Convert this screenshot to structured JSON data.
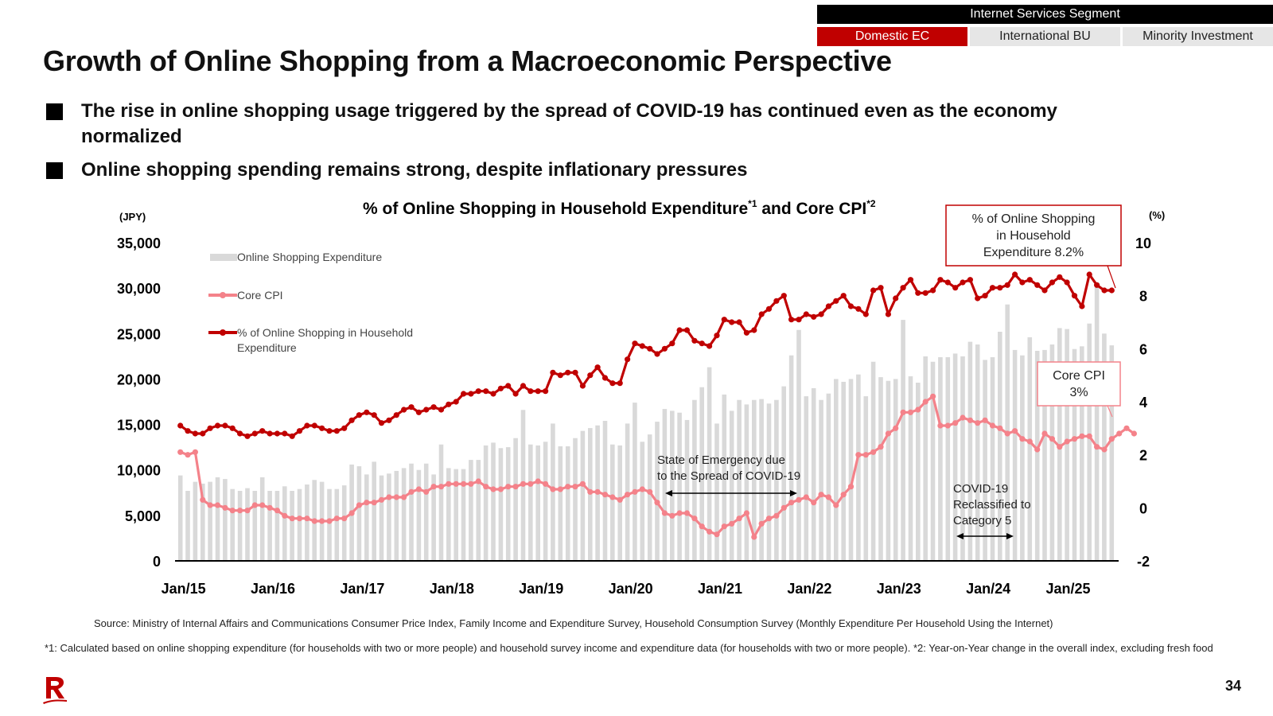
{
  "segment": {
    "header": "Internet Services Segment",
    "tabs": [
      {
        "label": "Domestic EC",
        "active": true
      },
      {
        "label": "International BU",
        "active": false
      },
      {
        "label": "Minority Investment",
        "active": false
      }
    ]
  },
  "title": "Growth of Online Shopping from a Macroeconomic Perspective",
  "bullets": [
    "The rise in online shopping usage triggered by the spread of COVID-19 has continued even as the economy normalized",
    "Online shopping spending remains strong, despite inflationary pressures"
  ],
  "chart_data": {
    "type": "bar+line",
    "title": "% of Online Shopping in Household Expenditure",
    "title_sup1": "*1",
    "title_mid": " and Core CPI",
    "title_sup2": "*2",
    "left_axis": {
      "unit": "(JPY)",
      "ticks": [
        0,
        5000,
        10000,
        15000,
        20000,
        25000,
        30000,
        35000
      ],
      "tick_labels": [
        "0",
        "5,000",
        "10,000",
        "15,000",
        "20,000",
        "25,000",
        "30,000",
        "35,000"
      ],
      "range": [
        0,
        35000
      ]
    },
    "right_axis": {
      "unit": "(%)",
      "ticks": [
        -2,
        0,
        2,
        4,
        6,
        8,
        10
      ],
      "range": [
        -2,
        10
      ]
    },
    "x_labels": [
      "Jan/15",
      "Jan/16",
      "Jan/17",
      "Jan/18",
      "Jan/19",
      "Jan/20",
      "Jan/21",
      "Jan/22",
      "Jan/23",
      "Jan/24",
      "Jan/25"
    ],
    "legend": {
      "placement": "top-left",
      "items": [
        {
          "name": "Online Shopping Expenditure",
          "kind": "bar",
          "color": "#d9d9d9"
        },
        {
          "name": "Core CPI",
          "kind": "line",
          "color": "#f4828a"
        },
        {
          "name": "% of Online Shopping in Household Expenditure",
          "kind": "line",
          "color": "#c00000"
        }
      ]
    },
    "series": [
      {
        "name": "Online Shopping Expenditure",
        "axis": "left",
        "values": [
          9400,
          7700,
          8700,
          8500,
          8700,
          9200,
          9000,
          7900,
          7700,
          8000,
          7700,
          9200,
          7700,
          7700,
          8200,
          7700,
          7900,
          8400,
          8900,
          8700,
          7900,
          7900,
          8300,
          10600,
          10400,
          9500,
          10900,
          9400,
          9600,
          9900,
          10200,
          10700,
          10000,
          10700,
          9500,
          12800,
          10200,
          10100,
          10100,
          11100,
          11100,
          12700,
          13000,
          12400,
          12500,
          13500,
          16600,
          12800,
          12700,
          13100,
          15100,
          12600,
          12600,
          13500,
          14300,
          14600,
          14900,
          15400,
          12800,
          12700,
          15100,
          17400,
          13100,
          13900,
          15300,
          16700,
          16500,
          16300,
          15500,
          17700,
          19100,
          21300,
          15100,
          18300,
          16500,
          17700,
          17200,
          17700,
          17800,
          17300,
          17700,
          19200,
          22600,
          25400,
          18100,
          19000,
          17700,
          18400,
          20000,
          19700,
          20000,
          20500,
          18100,
          21900,
          20200,
          19800,
          20000,
          26500,
          20300,
          19600,
          22500,
          21900,
          22400,
          22400,
          22800,
          22500,
          24100,
          23800,
          22100,
          22400,
          25200,
          28200,
          23200,
          22600,
          24600,
          23100,
          23200,
          23800,
          25600,
          25500,
          23300,
          23600,
          26100,
          30300,
          25000,
          23700
        ]
      },
      {
        "name": "Core CPI",
        "axis": "right",
        "values": [
          2.1,
          2.0,
          2.1,
          0.3,
          0.1,
          0.1,
          0.0,
          -0.1,
          -0.1,
          -0.1,
          0.1,
          0.1,
          0.0,
          -0.1,
          -0.3,
          -0.4,
          -0.4,
          -0.4,
          -0.5,
          -0.5,
          -0.5,
          -0.4,
          -0.4,
          -0.2,
          0.1,
          0.2,
          0.2,
          0.3,
          0.4,
          0.4,
          0.4,
          0.6,
          0.7,
          0.6,
          0.8,
          0.8,
          0.9,
          0.9,
          0.9,
          0.9,
          1.0,
          0.8,
          0.7,
          0.7,
          0.8,
          0.8,
          0.9,
          0.9,
          1.0,
          0.9,
          0.7,
          0.7,
          0.8,
          0.8,
          0.9,
          0.6,
          0.6,
          0.5,
          0.4,
          0.3,
          0.5,
          0.6,
          0.7,
          0.6,
          0.2,
          -0.2,
          -0.3,
          -0.2,
          -0.2,
          -0.4,
          -0.7,
          -0.9,
          -1.0,
          -0.7,
          -0.6,
          -0.4,
          -0.2,
          -1.1,
          -0.6,
          -0.4,
          -0.3,
          0.0,
          0.2,
          0.3,
          0.4,
          0.2,
          0.5,
          0.4,
          0.1,
          0.5,
          0.8,
          2.0,
          2.0,
          2.1,
          2.3,
          2.8,
          3.0,
          3.6,
          3.6,
          3.7,
          4.0,
          4.2,
          3.1,
          3.1,
          3.2,
          3.4,
          3.3,
          3.2,
          3.3,
          3.1,
          3.0,
          2.8,
          2.9,
          2.6,
          2.5,
          2.2,
          2.8,
          2.6,
          2.3,
          2.5,
          2.6,
          2.7,
          2.7,
          2.3,
          2.2,
          2.6,
          2.8,
          3.0,
          2.8
        ]
      },
      {
        "name": "% of Online Shopping in Household Expenditure",
        "axis": "right",
        "values": [
          3.1,
          2.9,
          2.8,
          2.8,
          3.0,
          3.1,
          3.1,
          3.0,
          2.8,
          2.7,
          2.8,
          2.9,
          2.8,
          2.8,
          2.8,
          2.7,
          2.9,
          3.1,
          3.1,
          3.0,
          2.9,
          2.9,
          3.0,
          3.3,
          3.5,
          3.6,
          3.5,
          3.2,
          3.3,
          3.5,
          3.7,
          3.8,
          3.6,
          3.7,
          3.8,
          3.7,
          3.9,
          4.0,
          4.3,
          4.3,
          4.4,
          4.4,
          4.3,
          4.5,
          4.6,
          4.3,
          4.6,
          4.4,
          4.4,
          4.4,
          5.1,
          5.0,
          5.1,
          5.1,
          4.6,
          5.0,
          5.3,
          4.9,
          4.7,
          4.7,
          5.6,
          6.2,
          6.1,
          6.0,
          5.8,
          6.0,
          6.2,
          6.7,
          6.7,
          6.3,
          6.2,
          6.1,
          6.5,
          7.1,
          7.0,
          7.0,
          6.6,
          6.7,
          7.3,
          7.5,
          7.8,
          8.0,
          7.1,
          7.1,
          7.3,
          7.2,
          7.3,
          7.6,
          7.8,
          8.0,
          7.6,
          7.5,
          7.3,
          8.2,
          8.3,
          7.3,
          7.9,
          8.3,
          8.6,
          8.1,
          8.1,
          8.2,
          8.6,
          8.5,
          8.3,
          8.5,
          8.6,
          7.9,
          8.0,
          8.3,
          8.3,
          8.4,
          8.8,
          8.5,
          8.6,
          8.4,
          8.2,
          8.5,
          8.7,
          8.5,
          8.0,
          7.6,
          8.8,
          8.4,
          8.2,
          8.2
        ]
      }
    ],
    "annotations": {
      "covid_emergency": "State of Emergency due to the Spread of COVID-19",
      "covid_category5": "COVID-19 Reclassified to Category 5",
      "callout_share": "% of Online Shopping in Household Expenditure 8.2%",
      "callout_cpi": "Core CPI 3%"
    }
  },
  "source": "Source: Ministry of Internal Affairs and Communications Consumer Price Index, Family Income and Expenditure Survey, Household Consumption Survey (Monthly Expenditure Per Household Using the Internet)",
  "footnote": "*1: Calculated based on online shopping expenditure (for households with two or more people) and household survey income and expenditure data (for households with two or more people). *2: Year-on-Year change in the overall index, excluding fresh food",
  "page_number": "34",
  "colors": {
    "accent": "#c00000",
    "cpi": "#f4828a",
    "bars": "#d9d9d9"
  }
}
